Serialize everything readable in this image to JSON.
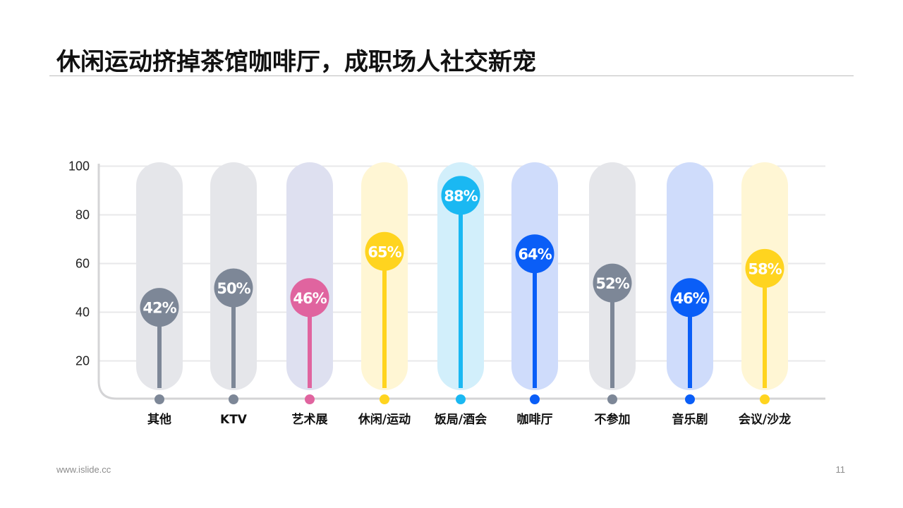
{
  "title": "休闲运动挤掉茶馆咖啡厅，成职场人社交新宠",
  "footer": {
    "website": "www.islide.cc",
    "page_number": "11"
  },
  "chart_data": {
    "type": "bar",
    "categories": [
      "其他",
      "KTV",
      "艺术展",
      "休闲/运动",
      "饭局/酒会",
      "咖啡厅",
      "不参加",
      "音乐剧",
      "会议/沙龙"
    ],
    "values": [
      42,
      50,
      46,
      65,
      88,
      64,
      52,
      46,
      58
    ],
    "value_labels": [
      "42%",
      "50%",
      "46%",
      "65%",
      "88%",
      "64%",
      "52%",
      "46%",
      "58%"
    ],
    "colors": [
      "#7d8797",
      "#7d8797",
      "#e0649f",
      "#ffd41f",
      "#1ab8f2",
      "#0a5ef7",
      "#7d8797",
      "#0a5ef7",
      "#ffd41f"
    ],
    "bg_colors": [
      "#e5e6ea",
      "#e5e6ea",
      "#dee0f0",
      "#fff6d4",
      "#d2effb",
      "#cfdcfb",
      "#e5e6ea",
      "#cfdcfb",
      "#fff6d4"
    ],
    "yticks": [
      20,
      40,
      60,
      80,
      100
    ],
    "ylim": [
      10,
      100
    ],
    "grid": true
  }
}
